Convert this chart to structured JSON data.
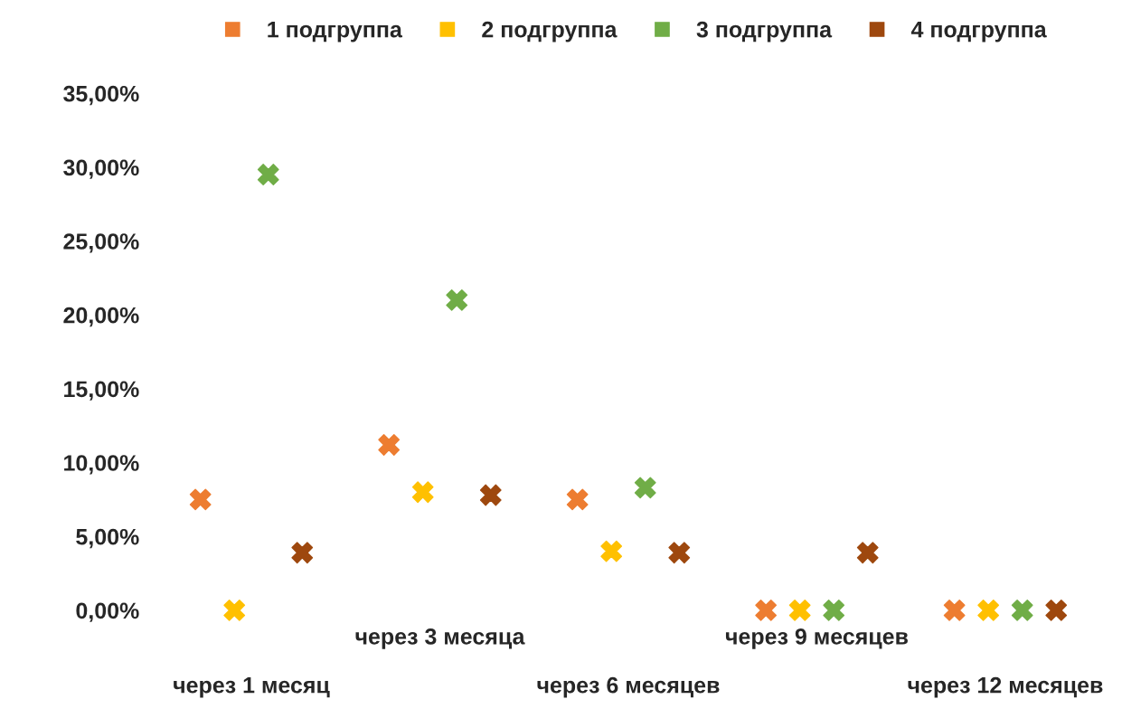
{
  "chart_data": {
    "type": "scatter",
    "categories": [
      "через 1 месяц",
      "через 3 месяца",
      "через 6 месяцев",
      "через 9 месяцев",
      "через 12 месяцев"
    ],
    "series": [
      {
        "name": "1 подгруппа",
        "color": "#ed7d31",
        "values": [
          7.5,
          11.2,
          7.5,
          0,
          0
        ]
      },
      {
        "name": "2 подгруппа",
        "color": "#ffc000",
        "values": [
          0,
          8.0,
          4.0,
          0,
          0
        ]
      },
      {
        "name": "3 подгруппа",
        "color": "#70ad47",
        "values": [
          29.5,
          21.0,
          8.3,
          0,
          0
        ]
      },
      {
        "name": "4 подгруппа",
        "color": "#9e480e",
        "values": [
          3.9,
          7.8,
          3.9,
          3.9,
          0
        ]
      }
    ],
    "ylim": [
      0,
      35
    ],
    "yticks": [
      {
        "value": 0,
        "label": "0,00%"
      },
      {
        "value": 5,
        "label": "5,00%"
      },
      {
        "value": 10,
        "label": "10,00%"
      },
      {
        "value": 15,
        "label": "15,00%"
      },
      {
        "value": 20,
        "label": "20,00%"
      },
      {
        "value": 25,
        "label": "25,00%"
      },
      {
        "value": 30,
        "label": "30,00%"
      },
      {
        "value": 35,
        "label": "35,00%"
      }
    ],
    "marker": "cross",
    "legend": "top",
    "grid": false
  }
}
